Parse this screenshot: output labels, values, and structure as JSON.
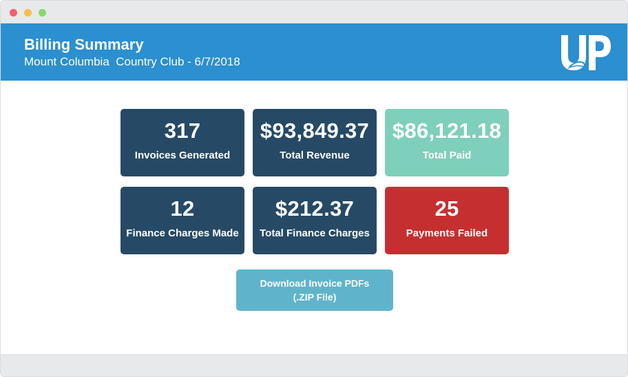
{
  "window": {
    "controls": [
      "close",
      "minimize",
      "maximize"
    ]
  },
  "header": {
    "title": "Billing Summary",
    "subtitle": "Mount Columbia  Country Club - 6/7/2018",
    "logo_text": "UP"
  },
  "stats": [
    {
      "value": "317",
      "label": "Invoices Generated",
      "color": "#264a66"
    },
    {
      "value": "$93,849.37",
      "label": "Total Revenue",
      "color": "#264a66"
    },
    {
      "value": "$86,121.18",
      "label": "Total Paid",
      "color": "#7ecfbb"
    },
    {
      "value": "12",
      "label": "Finance Charges Made",
      "color": "#264a66"
    },
    {
      "value": "$212.37",
      "label": "Total Finance Charges",
      "color": "#264a66"
    },
    {
      "value": "25",
      "label": "Payments Failed",
      "color": "#c62f2f"
    }
  ],
  "download": {
    "line1": "Download Invoice PDFs",
    "line2": "(.ZIP File)",
    "color": "#5fb4cc"
  },
  "colors": {
    "header": "#2b8fd0",
    "chrome": "#e8e9eb"
  }
}
